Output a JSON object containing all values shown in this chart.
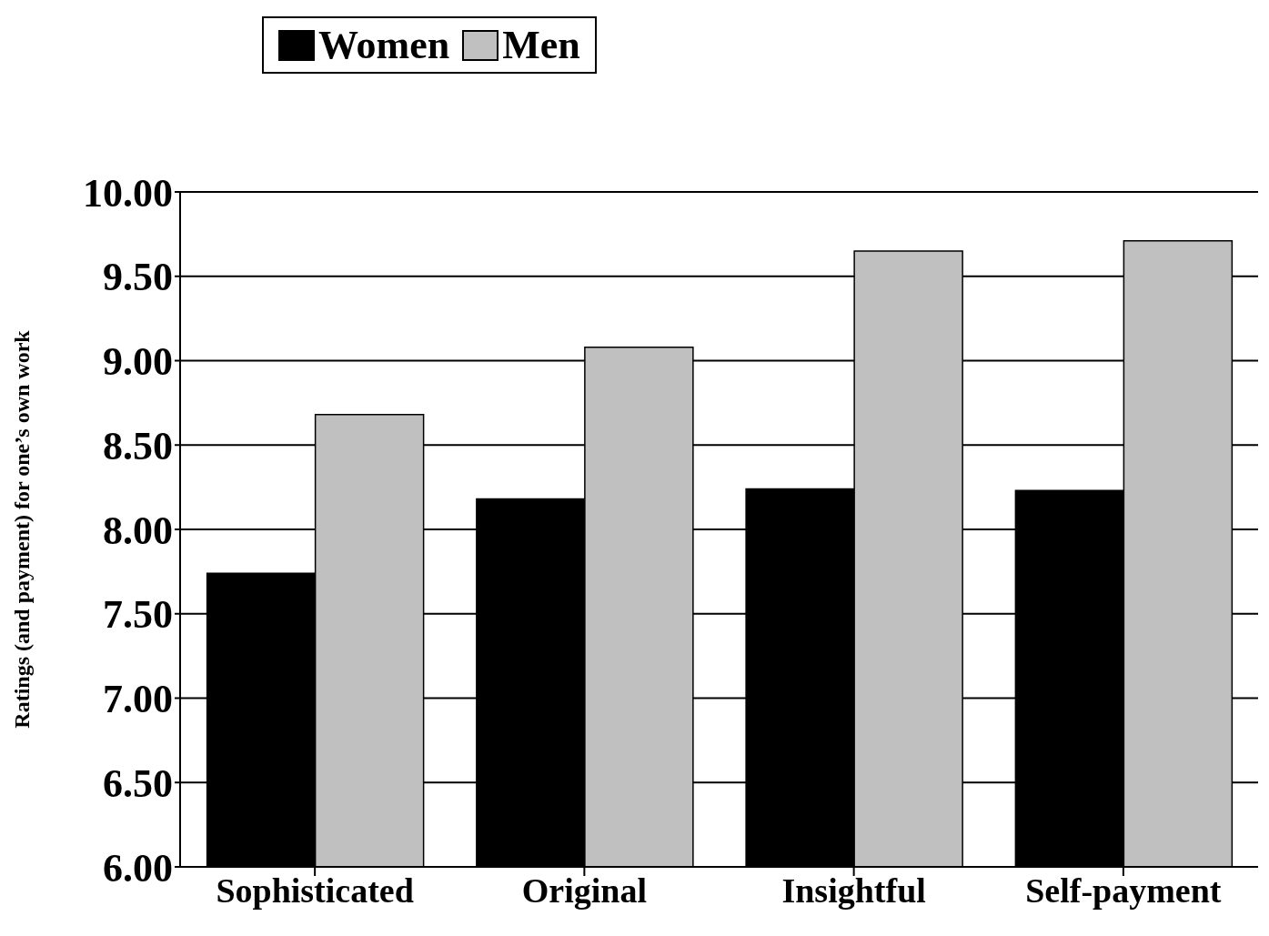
{
  "chart_data": {
    "type": "bar",
    "ylabel": "Ratings (and payment) for one’s own work",
    "categories": [
      "Sophisticated",
      "Original",
      "Insightful",
      "Self-payment"
    ],
    "series": [
      {
        "name": "Women",
        "color": "#000000",
        "values": [
          7.74,
          8.18,
          8.24,
          8.23
        ]
      },
      {
        "name": "Men",
        "color": "#c0c0c0",
        "values": [
          8.68,
          9.08,
          9.65,
          9.71
        ]
      }
    ],
    "ylim": [
      6,
      10
    ],
    "yticks": [
      {
        "value": 6,
        "label": "6.00"
      },
      {
        "value": 6.5,
        "label": "6.50"
      },
      {
        "value": 7,
        "label": "7.00"
      },
      {
        "value": 7.5,
        "label": "7.50"
      },
      {
        "value": 8,
        "label": "8.00"
      },
      {
        "value": 8.5,
        "label": "8.50"
      },
      {
        "value": 9,
        "label": "9.00"
      },
      {
        "value": 9.5,
        "label": "9.50"
      },
      {
        "value": 10,
        "label": "10.00"
      }
    ],
    "grid": "y",
    "legend": "top"
  }
}
